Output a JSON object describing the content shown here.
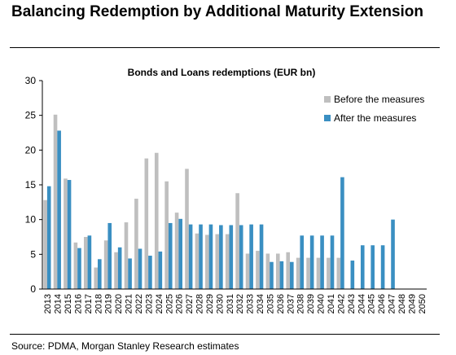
{
  "heading": "Balancing Redemption by Additional Maturity Extension",
  "source": "Source: PDMA, Morgan Stanley Research estimates",
  "colors": {
    "before": "#BFBFBF",
    "after": "#3A8FC2",
    "axis": "#000000",
    "text": "#000000"
  },
  "chart_data": {
    "type": "bar",
    "title": "Bonds and Loans redemptions (EUR bn)",
    "xlabel": "",
    "ylabel": "",
    "ylim": [
      0,
      30
    ],
    "yticks": [
      "0",
      "5",
      "10",
      "15",
      "20",
      "25",
      "30"
    ],
    "grid": false,
    "legend_position": "top-right",
    "categories": [
      "2013",
      "2014",
      "2015",
      "2016",
      "2017",
      "2018",
      "2019",
      "2020",
      "2021",
      "2022",
      "2023",
      "2024",
      "2025",
      "2026",
      "2027",
      "2028",
      "2029",
      "2030",
      "2031",
      "2032",
      "2033",
      "2034",
      "2035",
      "2036",
      "2037",
      "2038",
      "2039",
      "2040",
      "2041",
      "2042",
      "2043",
      "2044",
      "2045",
      "2046",
      "2047",
      "2048",
      "2049",
      "2050"
    ],
    "series": [
      {
        "name": "Before the measures",
        "color": "#BFBFBF",
        "values": [
          12.8,
          25.1,
          15.9,
          6.7,
          7.5,
          3.1,
          7.0,
          5.3,
          9.6,
          13.0,
          18.8,
          19.6,
          15.5,
          11.0,
          17.3,
          8.0,
          7.8,
          7.9,
          7.9,
          13.8,
          5.1,
          5.5,
          5.1,
          5.1,
          5.3,
          4.5,
          4.5,
          4.5,
          4.5,
          4.5,
          0,
          0,
          0,
          0,
          0,
          0,
          0,
          0
        ]
      },
      {
        "name": "After the measures",
        "color": "#3A8FC2",
        "values": [
          14.8,
          22.8,
          15.7,
          5.9,
          7.7,
          4.3,
          9.5,
          6.0,
          4.4,
          5.8,
          4.8,
          5.4,
          9.5,
          10.1,
          9.3,
          9.3,
          9.3,
          9.2,
          9.2,
          9.2,
          9.3,
          9.3,
          3.9,
          4.0,
          3.9,
          7.7,
          7.7,
          7.7,
          7.7,
          16.1,
          4.1,
          6.3,
          6.3,
          6.3,
          10.0,
          0,
          0,
          0
        ]
      }
    ]
  }
}
